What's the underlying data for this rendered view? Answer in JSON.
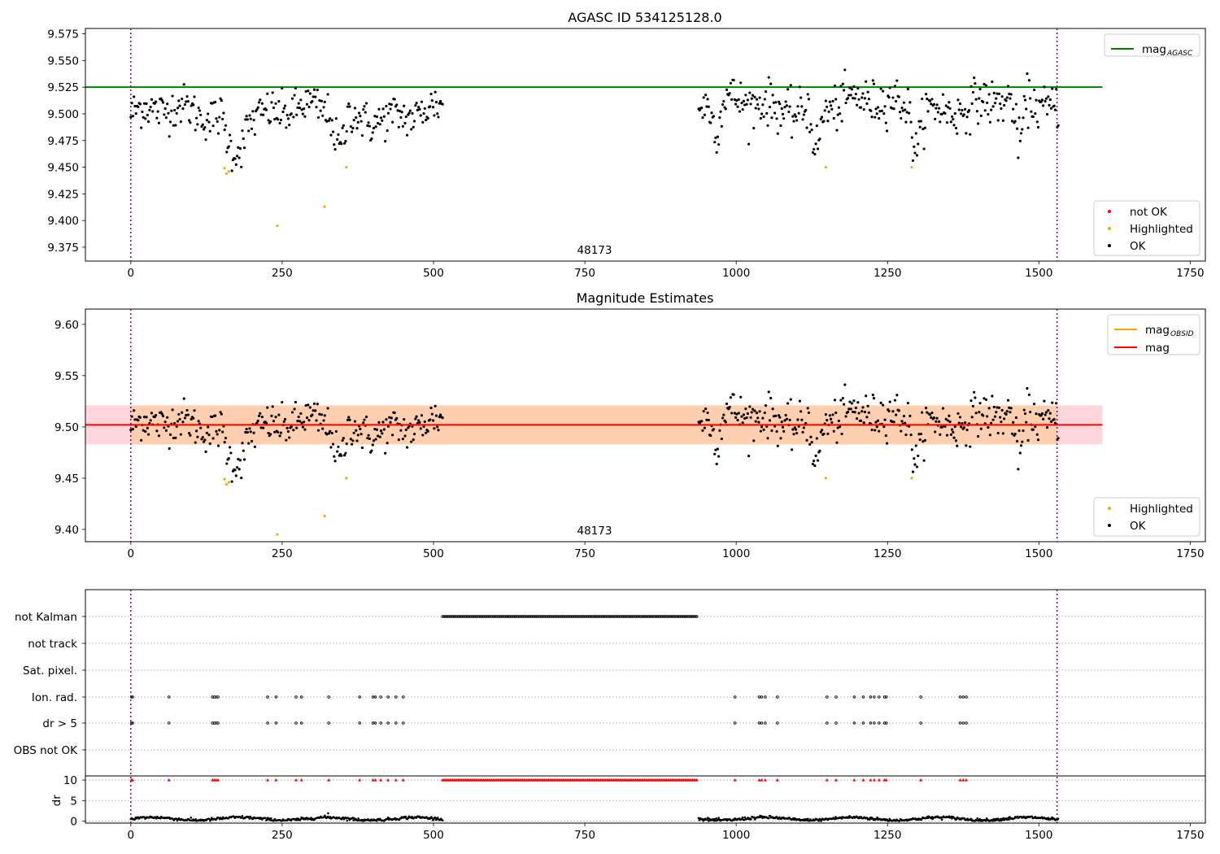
{
  "figure": {
    "panel1_title": "AGASC ID 534125128.0",
    "panel2_title": "Magnitude Estimates",
    "panel1_annotation": "48173",
    "panel2_annotation": "48173"
  },
  "colors": {
    "ok": "#000000",
    "highlighted": "#ffa500",
    "not_ok": "#ff0000",
    "mag_agasc": "#008000",
    "mag_obsid": "#ffa500",
    "mag": "#ff0000",
    "band_obsid": "#ffcfb0",
    "band_mag": "#ffd6dc",
    "obsid_boundary": "#800080"
  },
  "chart_data": [
    {
      "type": "scatter",
      "title": "AGASC ID 534125128.0",
      "xlim": [
        -75,
        1775
      ],
      "ylim": [
        9.362,
        9.58
      ],
      "xticks": [
        "0",
        "250",
        "500",
        "750",
        "1000",
        "1250",
        "1500",
        "1750"
      ],
      "yticks": [
        "9.375",
        "9.400",
        "9.425",
        "9.450",
        "9.475",
        "9.500",
        "9.525",
        "9.550",
        "9.575"
      ],
      "legend_upper": [
        {
          "label": "mag",
          "sub": "AGASC"
        }
      ],
      "legend_lower": [
        "not OK",
        "Highlighted",
        "OK"
      ],
      "lines": {
        "mag_agasc": 9.525,
        "x_range": [
          -75,
          1605
        ]
      },
      "obsid_boundaries": [
        0,
        1530
      ],
      "segments": [
        {
          "x_start": 0,
          "x_end": 515,
          "n": 300,
          "baseline": 9.5,
          "spread": 0.012,
          "dips": [
            [
              150,
              195,
              9.462
            ],
            [
              330,
              360,
              9.468
            ]
          ]
        },
        {
          "x_start": 938,
          "x_end": 1532,
          "n": 360,
          "baseline": 9.508,
          "spread": 0.013,
          "dips": [
            [
              955,
              980,
              9.485
            ],
            [
              1120,
              1145,
              9.468
            ],
            [
              1285,
              1310,
              9.468
            ],
            [
              1455,
              1480,
              9.475
            ]
          ]
        }
      ],
      "highlighted_points": [
        [
          155,
          9.449
        ],
        [
          158,
          9.444
        ],
        [
          162,
          9.446
        ],
        [
          242,
          9.395
        ],
        [
          320,
          9.413
        ],
        [
          356,
          9.45
        ],
        [
          1148,
          9.45
        ],
        [
          1290,
          9.45
        ]
      ]
    },
    {
      "type": "scatter",
      "title": "Magnitude Estimates",
      "xlim": [
        -75,
        1775
      ],
      "ylim": [
        9.388,
        9.615
      ],
      "xticks": [
        "0",
        "250",
        "500",
        "750",
        "1000",
        "1250",
        "1500",
        "1750"
      ],
      "yticks": [
        "9.40",
        "9.45",
        "9.50",
        "9.55",
        "9.60"
      ],
      "legend_upper": [
        {
          "label": "mag",
          "sub": "OBSID"
        },
        {
          "label": "mag",
          "sub": ""
        }
      ],
      "legend_lower": [
        "Highlighted",
        "OK"
      ],
      "lines": {
        "mag_obsid": 9.502,
        "mag": 9.502,
        "x_range": [
          -75,
          1605
        ]
      },
      "bands": {
        "obsid": [
          9.483,
          9.521
        ],
        "mag": [
          9.483,
          9.521
        ]
      },
      "obsid_boundaries": [
        0,
        1530
      ]
    },
    {
      "type": "scatter",
      "title": "",
      "xlim": [
        -75,
        1775
      ],
      "flags": [
        "not Kalman",
        "not track",
        "Sat. pixel.",
        "Ion. rad.",
        "dr > 5",
        "OBS not OK"
      ],
      "flag_points": {
        "not Kalman": {
          "ranges": [
            [
              515,
              937
            ]
          ]
        },
        "ion_rad": [
          1,
          3,
          63,
          135,
          138,
          141,
          144,
          226,
          240,
          273,
          282,
          327,
          378,
          400,
          404,
          413,
          425,
          438,
          450,
          998,
          1038,
          1042,
          1048,
          1068,
          1150,
          1165,
          1195,
          1210,
          1222,
          1228,
          1236,
          1245,
          1248,
          1305,
          1370,
          1375,
          1380
        ]
      },
      "dr": {
        "ylabel": "dr",
        "yticks": [
          "0",
          "5",
          "10"
        ],
        "ylim": [
          -0.5,
          11
        ],
        "cap": 10,
        "bad_ranges": [
          [
            515,
            937
          ]
        ]
      },
      "obsid_boundaries": [
        0,
        1530
      ]
    }
  ]
}
